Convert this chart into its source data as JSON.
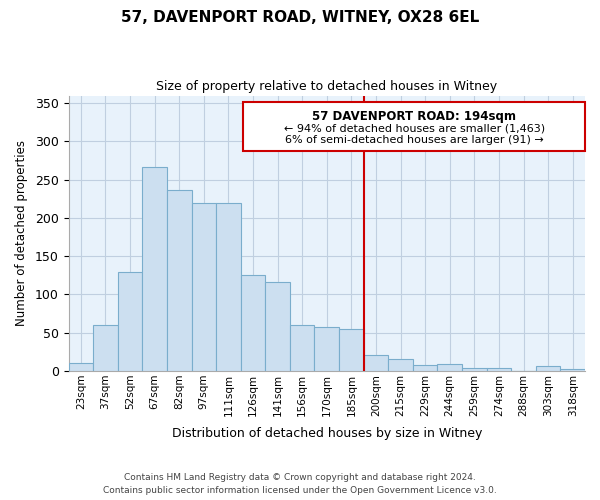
{
  "title": "57, DAVENPORT ROAD, WITNEY, OX28 6EL",
  "subtitle": "Size of property relative to detached houses in Witney",
  "xlabel": "Distribution of detached houses by size in Witney",
  "ylabel": "Number of detached properties",
  "bar_labels": [
    "23sqm",
    "37sqm",
    "52sqm",
    "67sqm",
    "82sqm",
    "97sqm",
    "111sqm",
    "126sqm",
    "141sqm",
    "156sqm",
    "170sqm",
    "185sqm",
    "200sqm",
    "215sqm",
    "229sqm",
    "244sqm",
    "259sqm",
    "274sqm",
    "288sqm",
    "303sqm",
    "318sqm"
  ],
  "bar_heights": [
    10,
    60,
    130,
    267,
    237,
    220,
    220,
    125,
    116,
    60,
    58,
    55,
    21,
    16,
    8,
    9,
    4,
    4,
    0,
    6,
    2
  ],
  "bar_color": "#ccdff0",
  "bar_edge_color": "#7aadcc",
  "highlight_color": "#cc0000",
  "annotation_title": "57 DAVENPORT ROAD: 194sqm",
  "annotation_line1": "← 94% of detached houses are smaller (1,463)",
  "annotation_line2": "6% of semi-detached houses are larger (91) →",
  "annotation_box_color": "#ffffff",
  "annotation_box_edge": "#cc0000",
  "ylim": [
    0,
    360
  ],
  "yticks": [
    0,
    50,
    100,
    150,
    200,
    250,
    300,
    350
  ],
  "footer1": "Contains HM Land Registry data © Crown copyright and database right 2024.",
  "footer2": "Contains public sector information licensed under the Open Government Licence v3.0.",
  "background_color": "#ffffff",
  "plot_bg_color": "#e8f2fb",
  "grid_color": "#c0cfe0"
}
